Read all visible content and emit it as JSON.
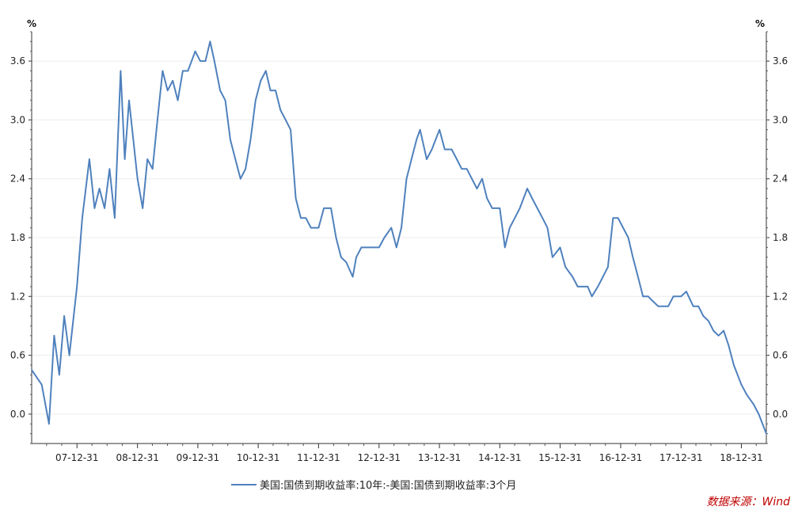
{
  "chart_data": {
    "type": "line",
    "title": "",
    "y_unit_left": "%",
    "y_unit_right": "%",
    "ylim": [
      -0.3,
      3.9
    ],
    "yticks": [
      "0.0",
      "0.6",
      "1.2",
      "1.8",
      "2.4",
      "3.0",
      "3.6"
    ],
    "xticks": [
      "07-12-31",
      "08-12-31",
      "09-12-31",
      "10-12-31",
      "11-12-31",
      "12-12-31",
      "13-12-31",
      "14-12-31",
      "15-12-31",
      "16-12-31",
      "17-12-31",
      "18-12-31"
    ],
    "xlim": [
      "2007-04-01",
      "2019-05-31"
    ],
    "grid": true,
    "legend_position": "bottom",
    "series": [
      {
        "name": "美国:国债到期收益率:10年:-美国:国债到期收益率:3个月",
        "color": "#4f81bd",
        "x": [
          "2007-04-01",
          "2007-06-01",
          "2007-07-15",
          "2007-08-15",
          "2007-09-15",
          "2007-10-15",
          "2007-11-15",
          "2007-12-31",
          "2008-02-01",
          "2008-03-15",
          "2008-04-15",
          "2008-05-15",
          "2008-06-15",
          "2008-07-15",
          "2008-08-15",
          "2008-09-20",
          "2008-10-15",
          "2008-11-10",
          "2008-12-31",
          "2009-01-31",
          "2009-03-01",
          "2009-04-01",
          "2009-05-01",
          "2009-06-01",
          "2009-07-01",
          "2009-08-01",
          "2009-09-01",
          "2009-10-01",
          "2009-11-01",
          "2009-12-15",
          "2010-01-15",
          "2010-02-15",
          "2010-03-15",
          "2010-04-10",
          "2010-05-15",
          "2010-06-15",
          "2010-07-15",
          "2010-08-15",
          "2010-09-15",
          "2010-10-15",
          "2010-11-15",
          "2010-12-15",
          "2011-01-15",
          "2011-02-15",
          "2011-03-15",
          "2011-04-15",
          "2011-05-15",
          "2011-06-15",
          "2011-07-15",
          "2011-08-15",
          "2011-09-15",
          "2011-10-15",
          "2011-11-15",
          "2011-12-31",
          "2012-02-01",
          "2012-03-15",
          "2012-04-15",
          "2012-05-15",
          "2012-06-15",
          "2012-07-25",
          "2012-08-15",
          "2012-09-15",
          "2012-10-15",
          "2012-11-15",
          "2012-12-31",
          "2013-02-01",
          "2013-03-15",
          "2013-04-15",
          "2013-05-15",
          "2013-06-15",
          "2013-07-15",
          "2013-08-15",
          "2013-09-05",
          "2013-10-15",
          "2013-11-15",
          "2013-12-31",
          "2014-02-01",
          "2014-03-15",
          "2014-04-15",
          "2014-05-15",
          "2014-06-15",
          "2014-07-15",
          "2014-08-15",
          "2014-09-15",
          "2014-10-15",
          "2014-11-15",
          "2014-12-31",
          "2015-01-31",
          "2015-03-01",
          "2015-04-01",
          "2015-05-01",
          "2015-06-15",
          "2015-07-15",
          "2015-08-15",
          "2015-09-15",
          "2015-10-15",
          "2015-11-15",
          "2015-12-31",
          "2016-02-01",
          "2016-03-15",
          "2016-04-15",
          "2016-05-15",
          "2016-06-15",
          "2016-07-10",
          "2016-08-15",
          "2016-09-15",
          "2016-10-15",
          "2016-11-15",
          "2016-12-15",
          "2017-01-15",
          "2017-02-15",
          "2017-03-15",
          "2017-04-15",
          "2017-05-15",
          "2017-06-15",
          "2017-07-15",
          "2017-08-15",
          "2017-09-15",
          "2017-10-15",
          "2017-11-15",
          "2017-12-31",
          "2018-02-01",
          "2018-03-15",
          "2018-04-15",
          "2018-05-15",
          "2018-06-15",
          "2018-07-15",
          "2018-08-15",
          "2018-09-15",
          "2018-10-15",
          "2018-11-15",
          "2018-12-31",
          "2019-02-01",
          "2019-03-15",
          "2019-04-15",
          "2019-05-31"
        ],
        "values": [
          0.45,
          0.3,
          -0.1,
          0.8,
          0.4,
          1.0,
          0.6,
          1.3,
          2.0,
          2.6,
          2.1,
          2.3,
          2.1,
          2.5,
          2.0,
          3.5,
          2.6,
          3.2,
          2.4,
          2.1,
          2.6,
          2.5,
          3.0,
          3.5,
          3.3,
          3.4,
          3.2,
          3.5,
          3.5,
          3.7,
          3.6,
          3.6,
          3.8,
          3.6,
          3.3,
          3.2,
          2.8,
          2.6,
          2.4,
          2.5,
          2.8,
          3.2,
          3.4,
          3.5,
          3.3,
          3.3,
          3.1,
          3.0,
          2.9,
          2.2,
          2.0,
          2.0,
          1.9,
          1.9,
          2.1,
          2.1,
          1.8,
          1.6,
          1.55,
          1.4,
          1.6,
          1.7,
          1.7,
          1.7,
          1.7,
          1.8,
          1.9,
          1.7,
          1.9,
          2.4,
          2.6,
          2.8,
          2.9,
          2.6,
          2.7,
          2.9,
          2.7,
          2.7,
          2.6,
          2.5,
          2.5,
          2.4,
          2.3,
          2.4,
          2.2,
          2.1,
          2.1,
          1.7,
          1.9,
          2.0,
          2.1,
          2.3,
          2.2,
          2.1,
          2.0,
          1.9,
          1.6,
          1.7,
          1.5,
          1.4,
          1.3,
          1.3,
          1.3,
          1.2,
          1.3,
          1.4,
          1.5,
          2.0,
          2.0,
          1.9,
          1.8,
          1.6,
          1.4,
          1.2,
          1.2,
          1.15,
          1.1,
          1.1,
          1.1,
          1.2,
          1.2,
          1.25,
          1.1,
          1.1,
          1.0,
          0.95,
          0.85,
          0.8,
          0.85,
          0.7,
          0.5,
          0.3,
          0.2,
          0.1,
          0.0,
          -0.2
        ]
      }
    ]
  },
  "legend": {
    "label": "美国:国债到期收益率:10年:-美国:国债到期收益率:3个月"
  },
  "source": "数据来源：Wind"
}
